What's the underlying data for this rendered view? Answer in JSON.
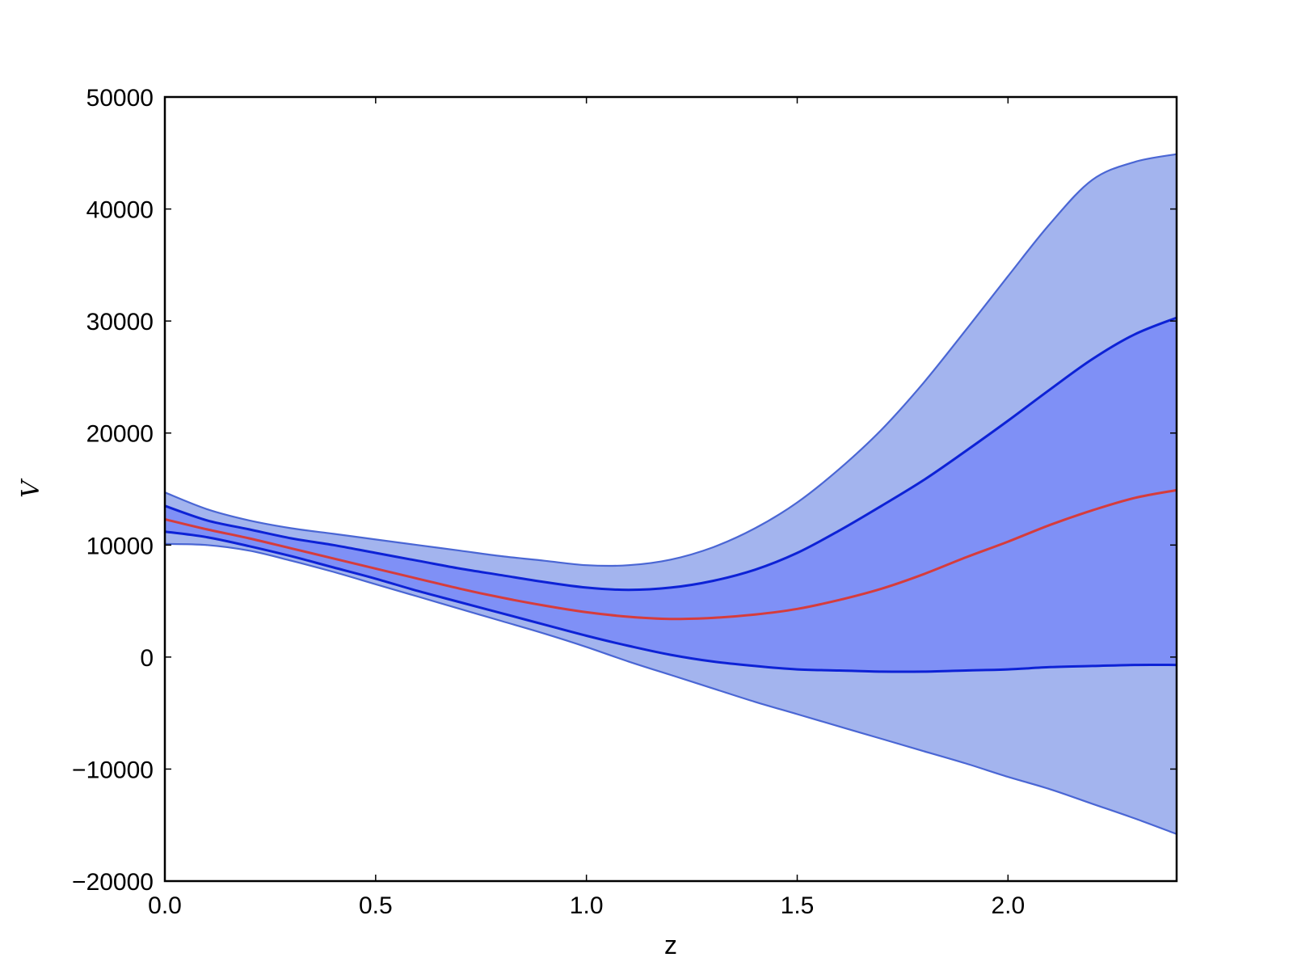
{
  "chart_data": {
    "type": "area",
    "xlabel": "z",
    "ylabel": "V",
    "xlim": [
      0,
      2.4
    ],
    "ylim": [
      -20000,
      50000
    ],
    "xticks": [
      "0.0",
      "0.5",
      "1.0",
      "1.5",
      "2.0"
    ],
    "yticks": [
      "−20000",
      "−10000",
      "0",
      "10000",
      "20000",
      "30000",
      "40000",
      "50000"
    ],
    "grid": false,
    "legend": "none",
    "x": [
      0.0,
      0.1,
      0.2,
      0.3,
      0.4,
      0.5,
      0.6,
      0.7,
      0.8,
      0.9,
      1.0,
      1.1,
      1.2,
      1.3,
      1.4,
      1.5,
      1.6,
      1.7,
      1.8,
      1.9,
      2.0,
      2.1,
      2.2,
      2.3,
      2.4
    ],
    "bands": [
      {
        "level": "outer",
        "color": "#a3b4ee",
        "edge_color": "#4a66d4",
        "upper": [
          14700,
          13200,
          12200,
          11500,
          11000,
          10500,
          10000,
          9500,
          9000,
          8600,
          8200,
          8200,
          8700,
          9800,
          11500,
          13800,
          16800,
          20300,
          24500,
          29200,
          34000,
          38700,
          42600,
          44200,
          44900
        ],
        "lower": [
          10100,
          10000,
          9500,
          8600,
          7600,
          6500,
          5400,
          4300,
          3200,
          2100,
          900,
          -400,
          -1600,
          -2800,
          -4000,
          -5100,
          -6200,
          -7300,
          -8400,
          -9500,
          -10700,
          -11800,
          -13100,
          -14400,
          -15800
        ]
      },
      {
        "level": "inner",
        "color": "#7f90f6",
        "edge_color": "#0d22d6",
        "upper": [
          13500,
          12200,
          11400,
          10600,
          10000,
          9300,
          8600,
          7900,
          7300,
          6700,
          6200,
          6000,
          6200,
          6800,
          7800,
          9300,
          11300,
          13500,
          15800,
          18400,
          21100,
          23900,
          26600,
          28800,
          30300
        ],
        "lower": [
          11200,
          10700,
          9900,
          9000,
          8000,
          7000,
          5900,
          4900,
          3900,
          2900,
          1900,
          1000,
          200,
          -400,
          -800,
          -1100,
          -1200,
          -1300,
          -1300,
          -1200,
          -1100,
          -900,
          -800,
          -700,
          -700
        ]
      }
    ],
    "series": [
      {
        "color": "#d63c3c",
        "values": [
          12300,
          11400,
          10600,
          9700,
          8800,
          7900,
          7000,
          6100,
          5300,
          4600,
          4000,
          3600,
          3400,
          3500,
          3800,
          4300,
          5100,
          6100,
          7400,
          8900,
          10300,
          11800,
          13100,
          14200,
          14900
        ]
      }
    ]
  }
}
